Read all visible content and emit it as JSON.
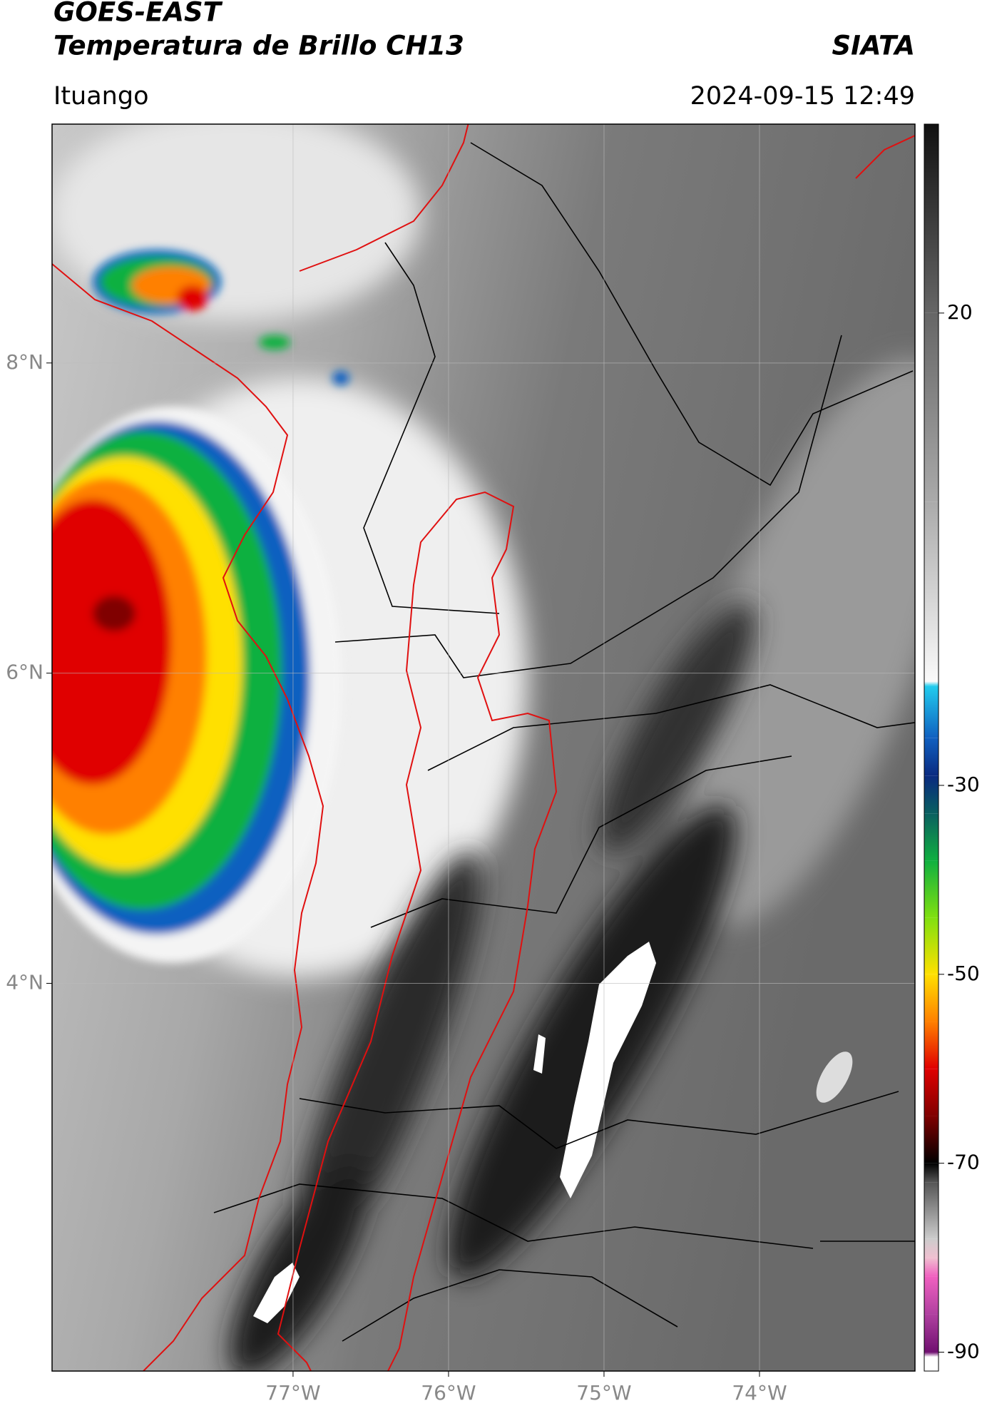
{
  "header": {
    "title": "GOES-EAST",
    "subtitle": "Temperatura de Brillo CH13",
    "source": "SIATA",
    "location": "Ituango",
    "datetime": "2024-09-15 12:49"
  },
  "map": {
    "xlim": [
      -78.55,
      -73
    ],
    "ylim": [
      1.5,
      9.54
    ],
    "grid": true,
    "xticks": [
      {
        "value": -77,
        "label": "77°W"
      },
      {
        "value": -76,
        "label": "76°W"
      },
      {
        "value": -75,
        "label": "75°W"
      },
      {
        "value": -74,
        "label": "74°W"
      }
    ],
    "yticks": [
      {
        "value": 8,
        "label": "8°N"
      },
      {
        "value": 6,
        "label": "6°N"
      },
      {
        "value": 4,
        "label": "4°N"
      }
    ]
  },
  "colorbar": {
    "lim": [
      -92,
      40
    ],
    "ticks": [
      20,
      -30,
      -50,
      -70,
      -90
    ],
    "stops": [
      {
        "value": 40,
        "color": "#111111"
      },
      {
        "value": 20,
        "color": "#666666"
      },
      {
        "value": 0,
        "color": "#aaaaaa"
      },
      {
        "value": -19,
        "color": "#fafafa"
      },
      {
        "value": -19.5,
        "color": "#22ccee"
      },
      {
        "value": -25,
        "color": "#1060c0"
      },
      {
        "value": -29,
        "color": "#0a2a80"
      },
      {
        "value": -33,
        "color": "#0a6060"
      },
      {
        "value": -38,
        "color": "#10b040"
      },
      {
        "value": -44,
        "color": "#80e010"
      },
      {
        "value": -50,
        "color": "#ffe000"
      },
      {
        "value": -55,
        "color": "#ff8000"
      },
      {
        "value": -60,
        "color": "#e00000"
      },
      {
        "value": -65,
        "color": "#800000"
      },
      {
        "value": -70,
        "color": "#000000"
      },
      {
        "value": -72,
        "color": "#555555"
      },
      {
        "value": -78,
        "color": "#cccccc"
      },
      {
        "value": -80,
        "color": "#f0c0d0"
      },
      {
        "value": -82,
        "color": "#f060c0"
      },
      {
        "value": -86,
        "color": "#b040a0"
      },
      {
        "value": -90,
        "color": "#701070"
      },
      {
        "value": -90.5,
        "color": "#ffffff"
      },
      {
        "value": -92,
        "color": "#ffffff"
      }
    ]
  }
}
